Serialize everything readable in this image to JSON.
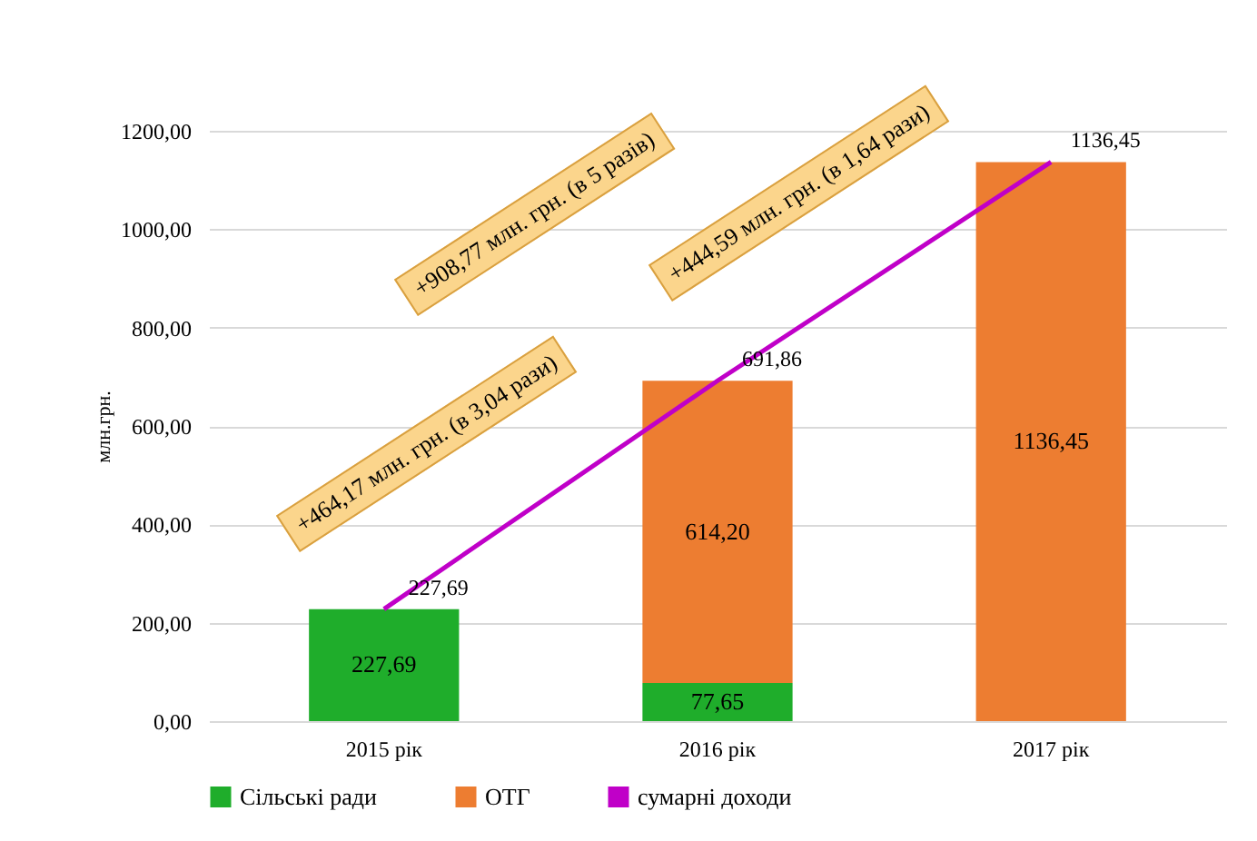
{
  "chart_data": {
    "type": "bar",
    "stacked": true,
    "categories": [
      "2015 рік",
      "2016 рік",
      "2017 рік"
    ],
    "ylabel": "млн.грн.",
    "ylim": [
      0,
      1200
    ],
    "yticks": [
      {
        "value": 0,
        "label": "0,00"
      },
      {
        "value": 200,
        "label": "200,00"
      },
      {
        "value": 400,
        "label": "400,00"
      },
      {
        "value": 600,
        "label": "600,00"
      },
      {
        "value": 800,
        "label": "800,00"
      },
      {
        "value": 1000,
        "label": "1000,00"
      },
      {
        "value": 1200,
        "label": "1200,00"
      }
    ],
    "grid": "y",
    "legend": "bottom",
    "series": [
      {
        "name": "Сільські ради",
        "color": "#1fad2b",
        "values": [
          227.69,
          77.65,
          null
        ],
        "value_labels": [
          "227,69",
          "77,65",
          null
        ]
      },
      {
        "name": "ОТГ",
        "color": "#ed7d31",
        "values": [
          null,
          614.2,
          1136.45
        ],
        "value_labels": [
          null,
          "614,20",
          "1136,45"
        ]
      },
      {
        "name": "сумарні доходи",
        "type": "line",
        "color": "#c000c8",
        "values": [
          227.69,
          691.86,
          1136.45
        ],
        "value_labels": [
          "227,69",
          "691,86",
          "1136,45"
        ]
      }
    ],
    "annotations": [
      "+908,77 млн. грн. (в 5 разів)",
      "+464,17 млн. грн. (в 3,04 рази)",
      "+444,59 млн. грн. (в 1,64 рази)"
    ]
  }
}
